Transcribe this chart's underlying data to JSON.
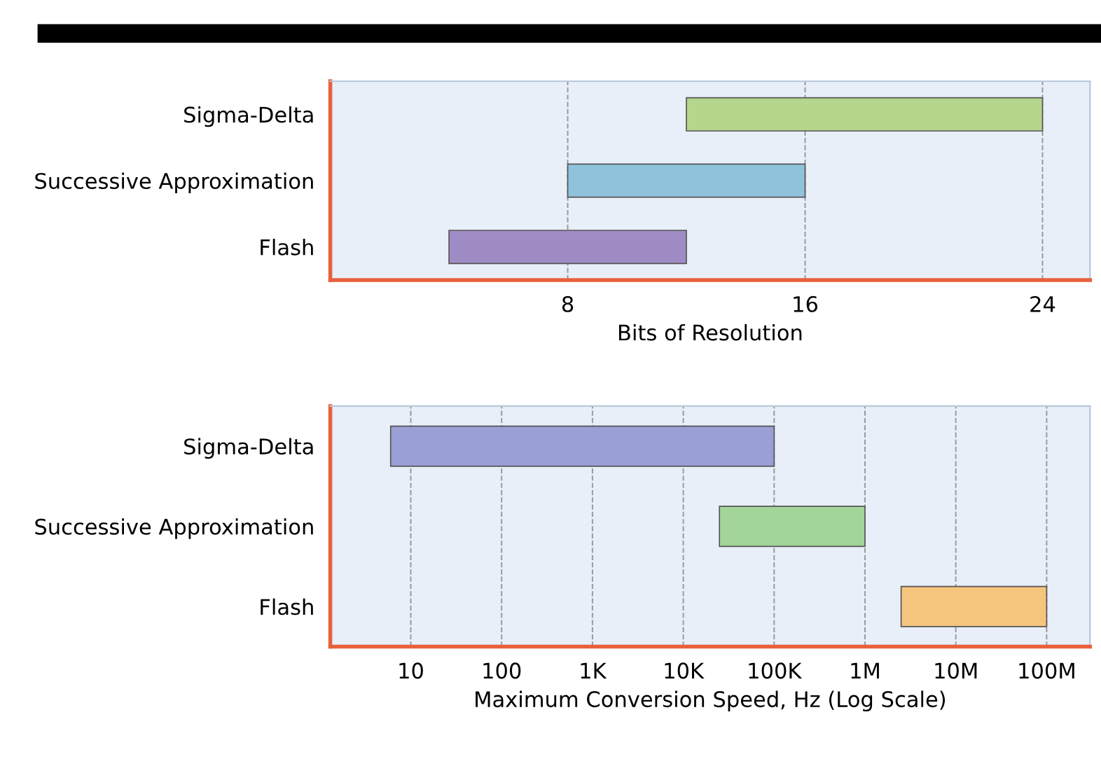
{
  "chart_data": [
    {
      "type": "bar",
      "orientation": "horizontal",
      "categories": [
        "Sigma-Delta",
        "Successive Approximation",
        "Flash"
      ],
      "base": [
        12,
        8,
        4
      ],
      "values": [
        12,
        8,
        8
      ],
      "colors": [
        "#b5d68c",
        "#8fc3dc",
        "#a08cc4"
      ],
      "xlabel": "Bits of Resolution",
      "xlim": [
        0,
        25.6
      ],
      "xticks": [
        8,
        16,
        24
      ],
      "grid": "x"
    },
    {
      "type": "bar",
      "orientation": "horizontal",
      "log": "x",
      "categories": [
        "Sigma-Delta",
        "Successive Approximation",
        "Flash"
      ],
      "base": [
        6,
        25000,
        2500000
      ],
      "values": [
        99994,
        975000,
        97500000
      ],
      "colors": [
        "#9a9fd6",
        "#a3d49a",
        "#f5c57e"
      ],
      "xlabel": "Maximum Conversion Speed, Hz (Log Scale)",
      "xlim": [
        1.3,
        300000000
      ],
      "xticks": [
        10,
        100,
        {
          "value": 1000,
          "label": "1K"
        },
        {
          "value": 10000,
          "label": "10K"
        },
        {
          "value": 100000,
          "label": "100K"
        },
        {
          "value": 1000000,
          "label": "1M"
        },
        {
          "value": 10000000,
          "label": "10M"
        },
        {
          "value": 100000000,
          "label": "100M"
        }
      ],
      "grid": "x"
    }
  ]
}
